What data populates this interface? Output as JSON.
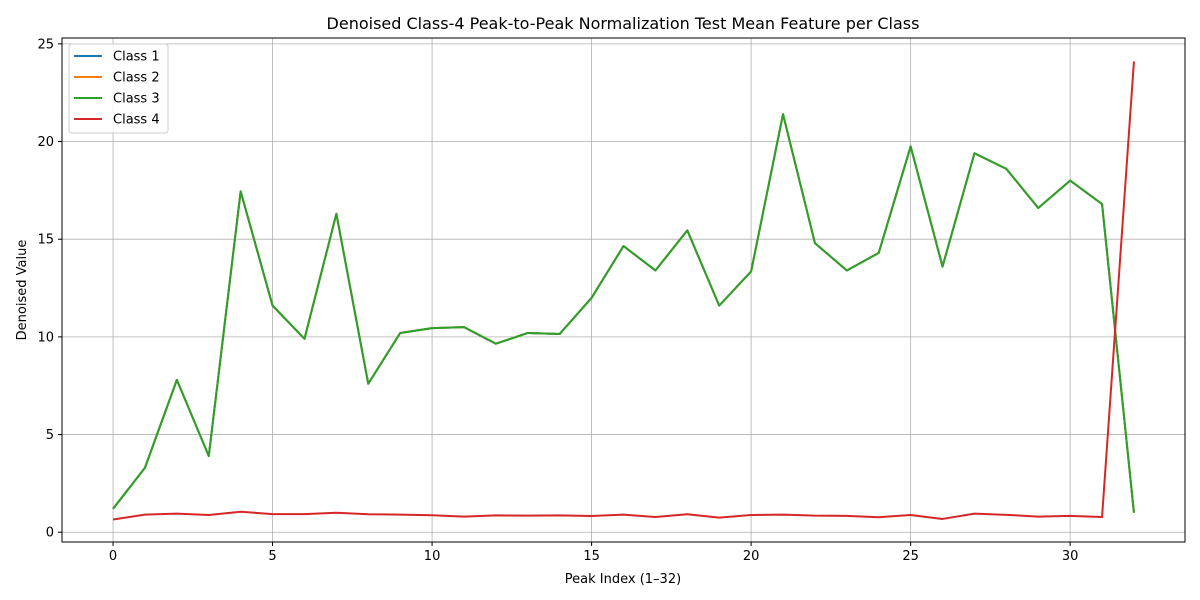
{
  "chart_data": {
    "type": "line",
    "title": "Denoised Class-4 Peak-to-Peak Normalization Test Mean Feature per Class",
    "xlabel": "Peak Index (1–32)",
    "ylabel": "Denoised Value",
    "xlim": [
      -1.6,
      33.6
    ],
    "ylim": [
      -0.5,
      25.3
    ],
    "xticks": [
      0,
      5,
      10,
      15,
      20,
      25,
      30
    ],
    "yticks": [
      0,
      5,
      10,
      15,
      20,
      25
    ],
    "grid": true,
    "legend_position": "top-left",
    "x": [
      0,
      1,
      2,
      3,
      4,
      5,
      6,
      7,
      8,
      9,
      10,
      11,
      12,
      13,
      14,
      15,
      16,
      17,
      18,
      19,
      20,
      21,
      22,
      23,
      24,
      25,
      26,
      27,
      28,
      29,
      30,
      31,
      32
    ],
    "series": [
      {
        "name": "Class 1",
        "color": "#1f77b4",
        "values": [
          1.2,
          3.3,
          7.8,
          3.9,
          17.45,
          11.6,
          9.9,
          16.3,
          7.6,
          10.2,
          10.45,
          10.5,
          9.65,
          10.2,
          10.15,
          12.0,
          14.65,
          13.4,
          15.45,
          11.6,
          13.35,
          21.4,
          14.8,
          13.4,
          14.3,
          19.75,
          13.6,
          19.4,
          18.6,
          16.6,
          18.0,
          16.8,
          1.0
        ]
      },
      {
        "name": "Class 2",
        "color": "#ff7f0e",
        "values": [
          1.2,
          3.3,
          7.8,
          3.9,
          17.45,
          11.6,
          9.9,
          16.3,
          7.6,
          10.2,
          10.45,
          10.5,
          9.65,
          10.2,
          10.15,
          12.0,
          14.65,
          13.4,
          15.45,
          11.6,
          13.35,
          21.4,
          14.8,
          13.4,
          14.3,
          19.75,
          13.6,
          19.4,
          18.6,
          16.6,
          18.0,
          16.8,
          1.0
        ]
      },
      {
        "name": "Class 3",
        "color": "#2ca02c",
        "values": [
          1.2,
          3.3,
          7.8,
          3.9,
          17.45,
          11.6,
          9.9,
          16.3,
          7.6,
          10.2,
          10.45,
          10.5,
          9.65,
          10.2,
          10.15,
          12.0,
          14.65,
          13.4,
          15.45,
          11.6,
          13.35,
          21.4,
          14.8,
          13.4,
          14.3,
          19.75,
          13.6,
          19.4,
          18.6,
          16.6,
          18.0,
          16.8,
          1.0
        ]
      },
      {
        "name": "Class 4",
        "color": "#d62728",
        "values": [
          0.65,
          0.9,
          0.95,
          0.88,
          1.05,
          0.93,
          0.93,
          1.0,
          0.92,
          0.9,
          0.87,
          0.8,
          0.86,
          0.85,
          0.86,
          0.83,
          0.9,
          0.78,
          0.92,
          0.75,
          0.88,
          0.9,
          0.85,
          0.84,
          0.77,
          0.88,
          0.68,
          0.95,
          0.89,
          0.8,
          0.84,
          0.78,
          24.1
        ]
      }
    ]
  }
}
